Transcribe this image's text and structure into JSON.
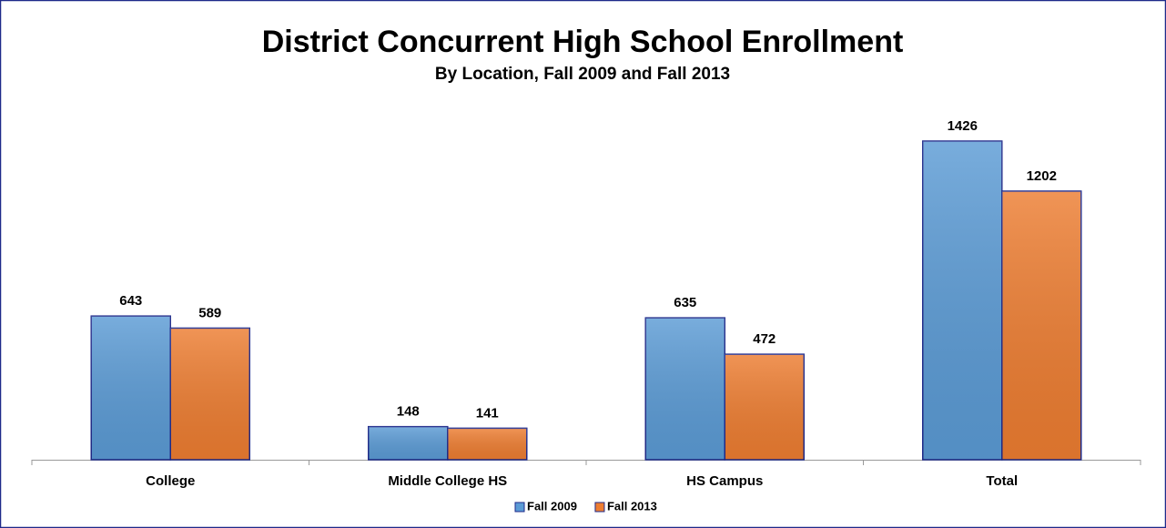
{
  "chart_data": {
    "type": "bar",
    "title": "District Concurrent High School Enrollment",
    "subtitle": "By Location, Fall 2009 and Fall 2013",
    "categories": [
      "College",
      "Middle College HS",
      "HS Campus",
      "Total"
    ],
    "series": [
      {
        "name": "Fall 2009",
        "color": "#5b9bd5",
        "values": [
          643,
          148,
          635,
          1426
        ]
      },
      {
        "name": "Fall 2013",
        "color": "#ed7d31",
        "values": [
          589,
          141,
          472,
          1202
        ]
      }
    ],
    "legend": "bottom"
  }
}
